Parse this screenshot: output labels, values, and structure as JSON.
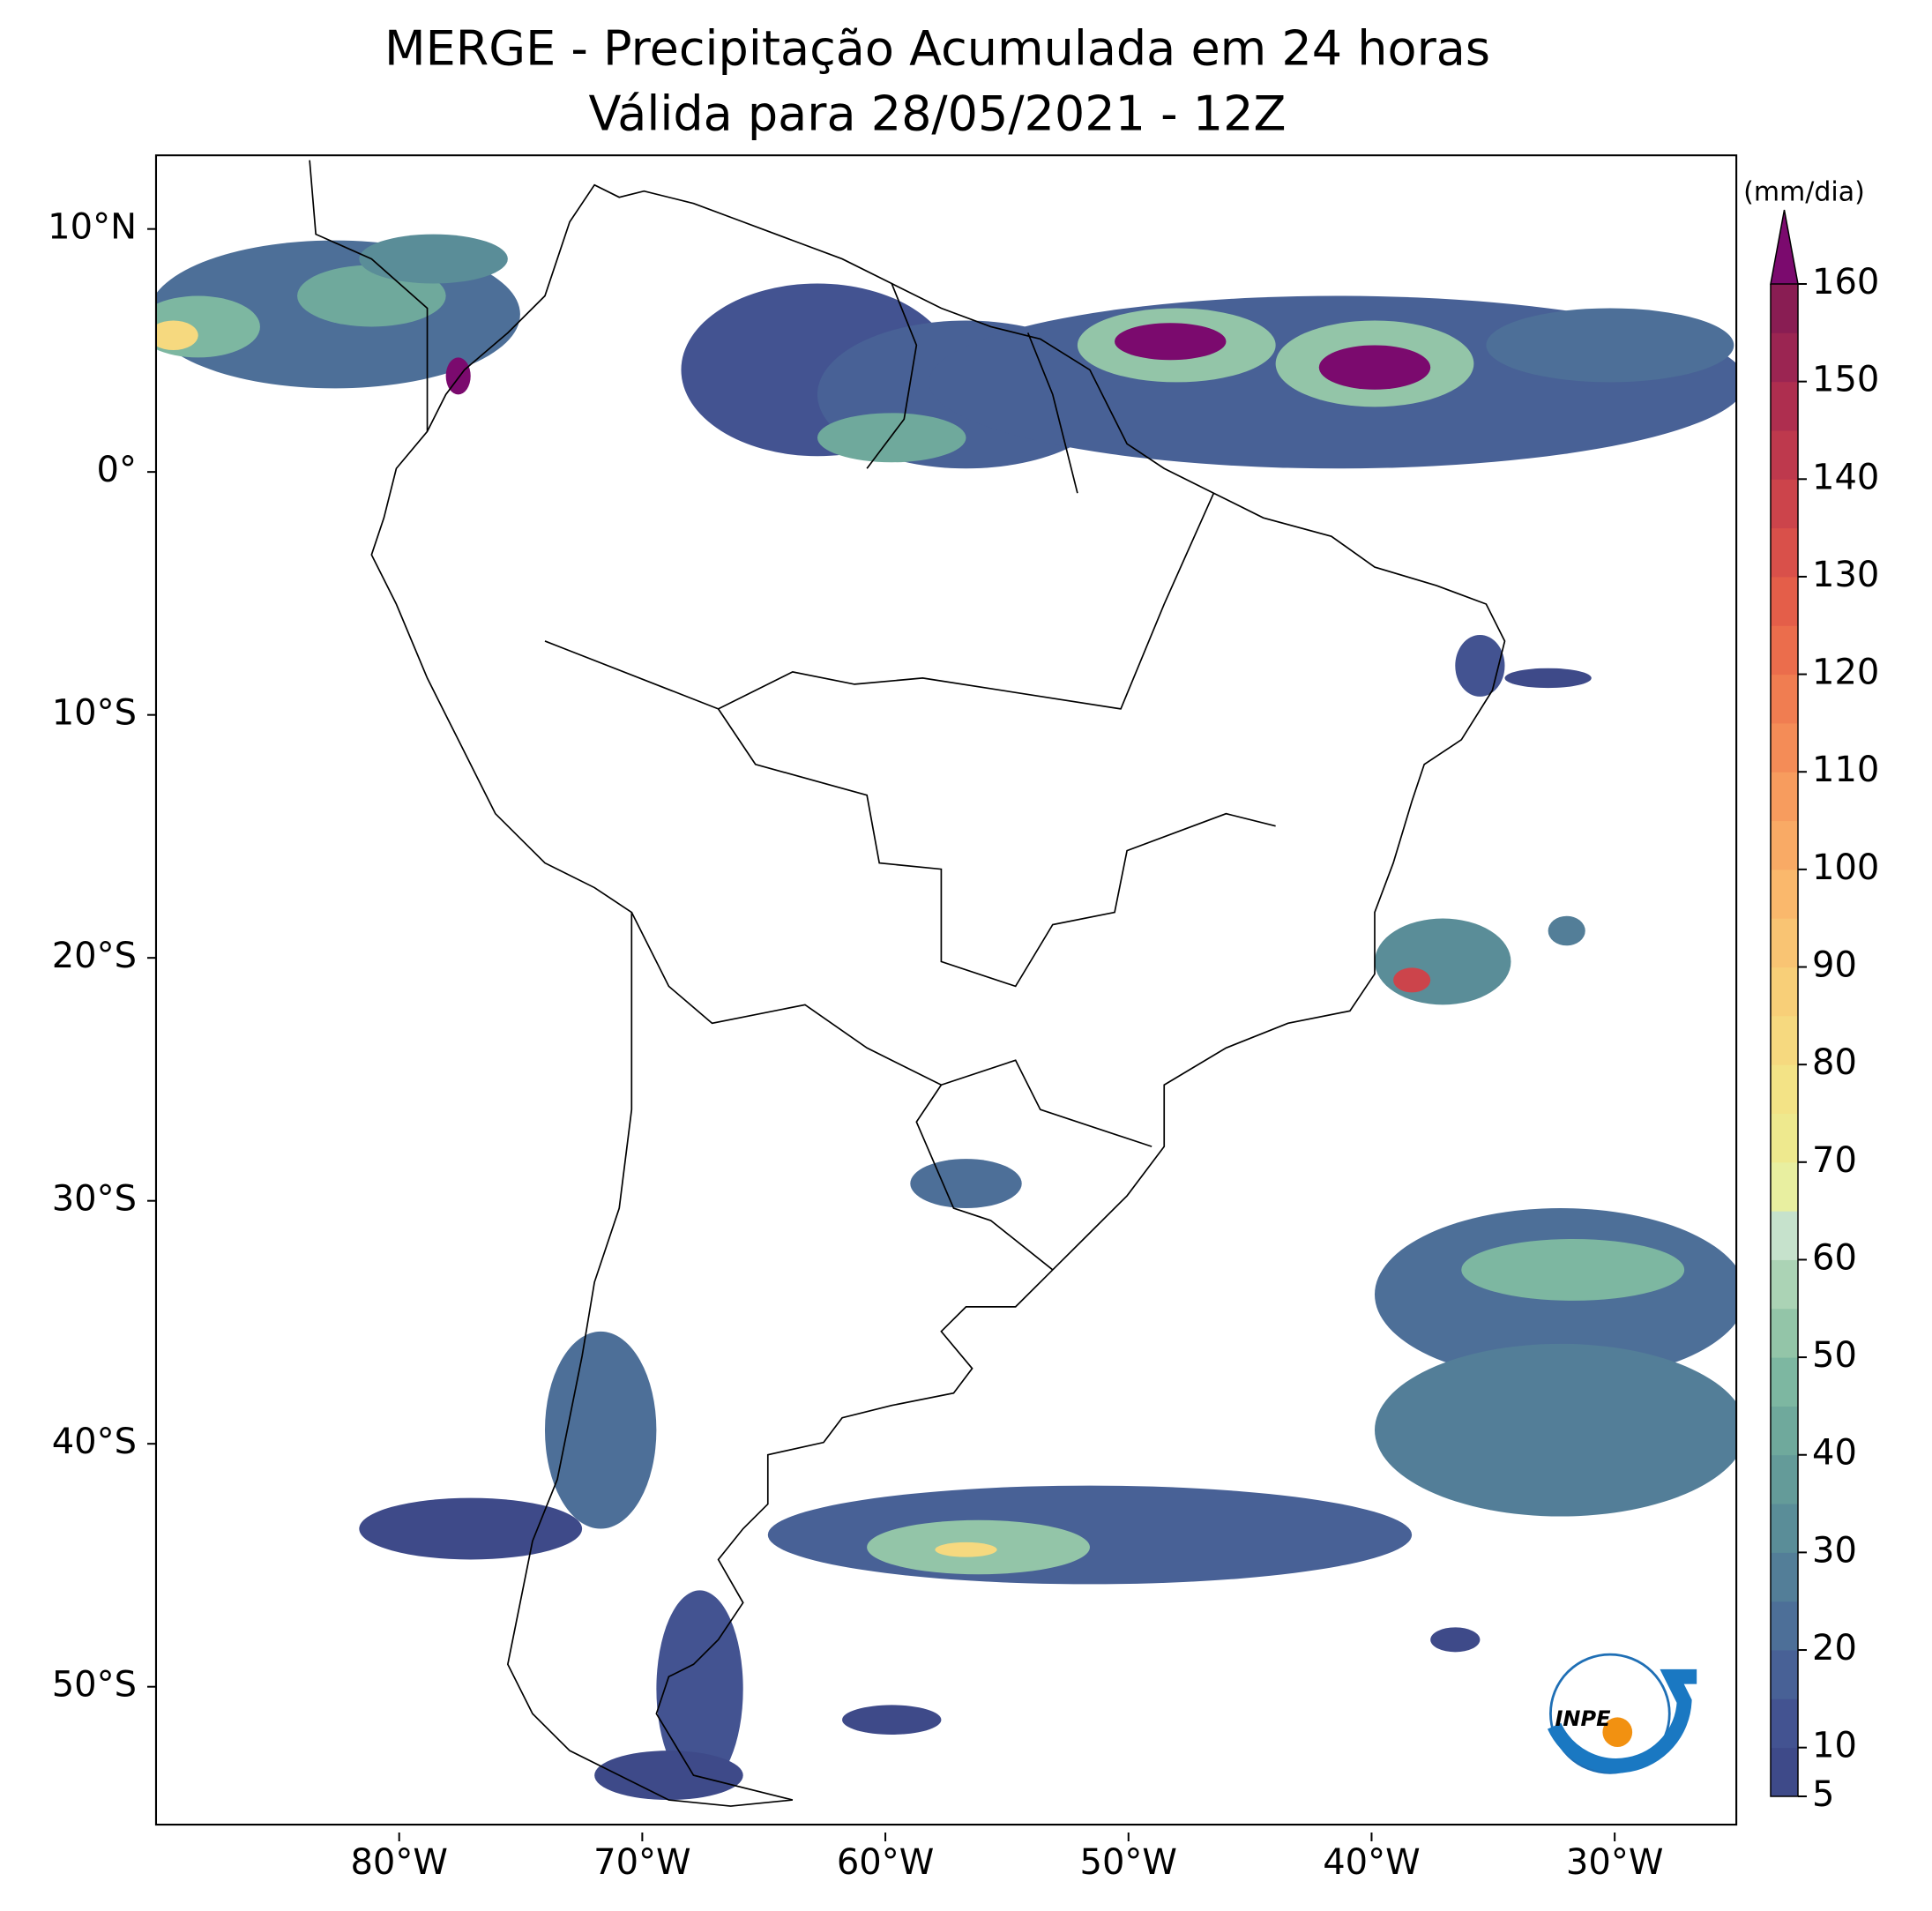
{
  "chart_data": {
    "type": "map",
    "title": "MERGE - Precipitação Acumulada em 24 horas",
    "subtitle": "Válida para 28/05/2021 - 12Z",
    "xlim": [
      -90,
      -25
    ],
    "ylim": [
      -56,
      13
    ],
    "xticks": [
      {
        "value": -80,
        "label": "80°W"
      },
      {
        "value": -70,
        "label": "70°W"
      },
      {
        "value": -60,
        "label": "60°W"
      },
      {
        "value": -50,
        "label": "50°W"
      },
      {
        "value": -40,
        "label": "40°W"
      },
      {
        "value": -30,
        "label": "30°W"
      }
    ],
    "yticks": [
      {
        "value": 10,
        "label": "10°N"
      },
      {
        "value": 0,
        "label": "0°"
      },
      {
        "value": -10,
        "label": "10°S"
      },
      {
        "value": -20,
        "label": "20°S"
      },
      {
        "value": -30,
        "label": "30°S"
      },
      {
        "value": -40,
        "label": "40°S"
      },
      {
        "value": -50,
        "label": "50°S"
      }
    ],
    "colorbar": {
      "label": "(mm/dia)",
      "lim": [
        5,
        160
      ],
      "ticks": [
        5,
        10,
        20,
        30,
        40,
        50,
        60,
        70,
        80,
        90,
        100,
        110,
        120,
        130,
        140,
        150,
        160
      ],
      "levels": [
        5,
        10,
        15,
        20,
        25,
        30,
        35,
        40,
        45,
        50,
        55,
        60,
        65,
        70,
        75,
        80,
        85,
        90,
        95,
        100,
        105,
        110,
        115,
        120,
        125,
        130,
        135,
        140,
        145,
        150,
        155,
        160
      ],
      "colors": [
        "#3e4a89",
        "#435391",
        "#486196",
        "#4d6f98",
        "#537e98",
        "#5a8d98",
        "#649b99",
        "#6fa99c",
        "#7db7a1",
        "#93c5a8",
        "#abd3b5",
        "#c6e2cc",
        "#e8efa0",
        "#eee98e",
        "#f3e386",
        "#f6d97f",
        "#f8cf78",
        "#f9c473",
        "#fab86c",
        "#f9aa65",
        "#f79c5e",
        "#f48c57",
        "#f07d51",
        "#eb6d4c",
        "#e45e49",
        "#d9504a",
        "#cc444b",
        "#be394d",
        "#ae2e4f",
        "#9b2552",
        "#891d53"
      ],
      "extend_color": "#7b0a6e"
    },
    "logo_text": "INPE"
  }
}
